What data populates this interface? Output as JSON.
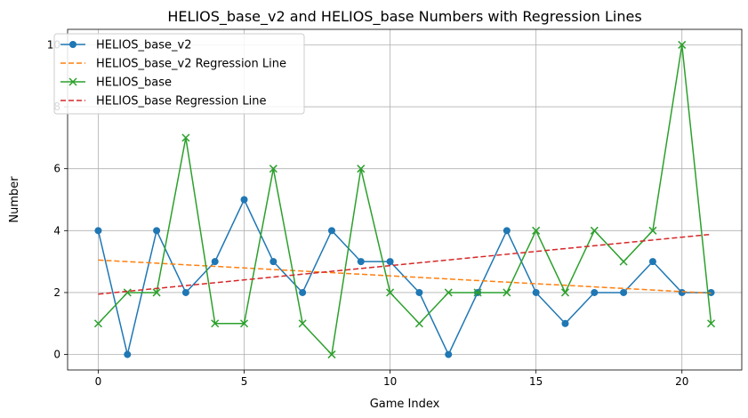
{
  "chart_data": {
    "type": "line",
    "title": "HELIOS_base_v2 and HELIOS_base Numbers with Regression Lines",
    "xlabel": "Game Index",
    "ylabel": "Number",
    "xlim": [
      -1.05,
      22.05
    ],
    "ylim": [
      -0.5,
      10.5
    ],
    "xticks": [
      0,
      5,
      10,
      15,
      20
    ],
    "yticks": [
      0,
      2,
      4,
      6,
      8,
      10
    ],
    "grid": true,
    "legend_position": "upper-left",
    "x": [
      0,
      1,
      2,
      3,
      4,
      5,
      6,
      7,
      8,
      9,
      10,
      11,
      12,
      13,
      14,
      15,
      16,
      17,
      18,
      19,
      20,
      21
    ],
    "series": [
      {
        "name": "HELIOS_base_v2",
        "color": "#1f77b4",
        "style": "solid",
        "marker": "circle",
        "values": [
          4,
          0,
          4,
          2,
          3,
          5,
          3,
          2,
          4,
          3,
          3,
          2,
          0,
          2,
          4,
          2,
          1,
          2,
          2,
          3,
          2,
          2
        ]
      },
      {
        "name": "HELIOS_base_v2 Regression Line",
        "color": "#ff7f0e",
        "style": "dashed",
        "marker": "none",
        "line": {
          "x": [
            0,
            21
          ],
          "y": [
            3.05,
            1.98
          ]
        }
      },
      {
        "name": "HELIOS_base",
        "color": "#2ca02c",
        "style": "solid",
        "marker": "x",
        "values": [
          1,
          2,
          2,
          7,
          1,
          1,
          6,
          1,
          0,
          6,
          2,
          1,
          2,
          2,
          2,
          4,
          2,
          4,
          3,
          4,
          10,
          1
        ]
      },
      {
        "name": "HELIOS_base Regression Line",
        "color": "#d62728",
        "style": "dashed",
        "marker": "none",
        "line": {
          "x": [
            0,
            21
          ],
          "y": [
            1.95,
            3.88
          ]
        }
      }
    ]
  }
}
